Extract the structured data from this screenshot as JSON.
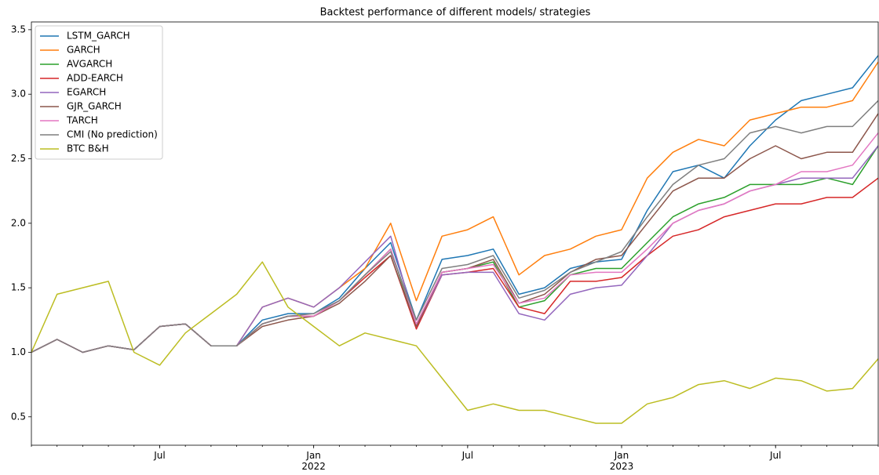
{
  "chart_data": {
    "type": "line",
    "title": "Backtest performance of different models/ strategies",
    "x": [
      "2021-02",
      "2021-03",
      "2021-04",
      "2021-05",
      "2021-06",
      "2021-07",
      "2021-08",
      "2021-09",
      "2021-10",
      "2021-11",
      "2021-12",
      "2022-01",
      "2022-02",
      "2022-03",
      "2022-04",
      "2022-05",
      "2022-06",
      "2022-07",
      "2022-08",
      "2022-09",
      "2022-10",
      "2022-11",
      "2022-12",
      "2023-01",
      "2023-02",
      "2023-03",
      "2023-04",
      "2023-05",
      "2023-06",
      "2023-07",
      "2023-08",
      "2023-09",
      "2023-10",
      "2023-11"
    ],
    "xlim": [
      "2021-02",
      "2023-11"
    ],
    "xticks": [
      {
        "value": "2021-07",
        "label": "Jul"
      },
      {
        "value": "2022-01",
        "label": "Jan\n2022"
      },
      {
        "value": "2022-07",
        "label": "Jul"
      },
      {
        "value": "2023-01",
        "label": "Jan\n2023"
      },
      {
        "value": "2023-07",
        "label": "Jul"
      }
    ],
    "ylim": [
      0.28,
      3.56
    ],
    "yticks": [
      0.5,
      {
        "value": 1.0,
        "label": "1.0"
      },
      1.5,
      {
        "value": 2.0,
        "label": "2.0"
      },
      2.5,
      {
        "value": 3.0,
        "label": "3.0"
      },
      3.5
    ],
    "legend": "upper left",
    "grid": false,
    "series": [
      {
        "name": "LSTM_GARCH",
        "color": "#1f77b4",
        "values": [
          1.0,
          1.1,
          1.0,
          1.05,
          1.02,
          1.2,
          1.22,
          1.05,
          1.05,
          1.25,
          1.3,
          1.3,
          1.42,
          1.65,
          1.85,
          1.25,
          1.72,
          1.75,
          1.8,
          1.45,
          1.5,
          1.65,
          1.7,
          1.72,
          2.1,
          2.4,
          2.45,
          2.35,
          2.6,
          2.8,
          2.95,
          3.0,
          3.05,
          3.3
        ]
      },
      {
        "name": "GARCH",
        "color": "#ff7f0e",
        "values": [
          1.0,
          1.1,
          1.0,
          1.05,
          1.02,
          1.2,
          1.22,
          1.05,
          1.05,
          1.35,
          1.42,
          1.35,
          1.5,
          1.65,
          2.0,
          1.4,
          1.9,
          1.95,
          2.05,
          1.6,
          1.75,
          1.8,
          1.9,
          1.95,
          2.35,
          2.55,
          2.65,
          2.6,
          2.8,
          2.85,
          2.9,
          2.9,
          2.95,
          3.25
        ]
      },
      {
        "name": "AVGARCH",
        "color": "#2ca02c",
        "values": [
          1.0,
          1.1,
          1.0,
          1.05,
          1.02,
          1.2,
          1.22,
          1.05,
          1.05,
          1.22,
          1.28,
          1.28,
          1.4,
          1.6,
          1.8,
          1.2,
          1.62,
          1.65,
          1.7,
          1.35,
          1.4,
          1.6,
          1.65,
          1.65,
          1.85,
          2.05,
          2.15,
          2.2,
          2.3,
          2.3,
          2.3,
          2.35,
          2.3,
          2.6
        ]
      },
      {
        "name": "ADD-EARCH",
        "color": "#d62728",
        "values": [
          1.0,
          1.1,
          1.0,
          1.05,
          1.02,
          1.2,
          1.22,
          1.05,
          1.05,
          1.22,
          1.28,
          1.28,
          1.4,
          1.58,
          1.75,
          1.18,
          1.6,
          1.62,
          1.65,
          1.35,
          1.3,
          1.55,
          1.55,
          1.58,
          1.75,
          1.9,
          1.95,
          2.05,
          2.1,
          2.15,
          2.15,
          2.2,
          2.2,
          2.35
        ]
      },
      {
        "name": "EGARCH",
        "color": "#9467bd",
        "values": [
          1.0,
          1.1,
          1.0,
          1.05,
          1.02,
          1.2,
          1.22,
          1.05,
          1.05,
          1.35,
          1.42,
          1.35,
          1.5,
          1.7,
          1.9,
          1.2,
          1.6,
          1.62,
          1.62,
          1.3,
          1.25,
          1.45,
          1.5,
          1.52,
          1.75,
          2.0,
          2.1,
          2.15,
          2.25,
          2.3,
          2.35,
          2.35,
          2.35,
          2.6
        ]
      },
      {
        "name": "GJR_GARCH",
        "color": "#8c564b",
        "values": [
          1.0,
          1.1,
          1.0,
          1.05,
          1.02,
          1.2,
          1.22,
          1.05,
          1.05,
          1.2,
          1.25,
          1.28,
          1.38,
          1.55,
          1.75,
          1.2,
          1.62,
          1.65,
          1.72,
          1.38,
          1.45,
          1.62,
          1.72,
          1.75,
          2.0,
          2.25,
          2.35,
          2.35,
          2.5,
          2.6,
          2.5,
          2.55,
          2.55,
          2.85
        ]
      },
      {
        "name": "TARCH",
        "color": "#e377c2",
        "values": [
          1.0,
          1.1,
          1.0,
          1.05,
          1.02,
          1.2,
          1.22,
          1.05,
          1.05,
          1.22,
          1.28,
          1.28,
          1.4,
          1.6,
          1.8,
          1.22,
          1.62,
          1.65,
          1.68,
          1.38,
          1.42,
          1.6,
          1.62,
          1.62,
          1.8,
          2.0,
          2.1,
          2.15,
          2.25,
          2.3,
          2.4,
          2.4,
          2.45,
          2.7
        ]
      },
      {
        "name": "CMI (No prediction)",
        "color": "#7f7f7f",
        "values": [
          1.0,
          1.1,
          1.0,
          1.05,
          1.02,
          1.2,
          1.22,
          1.05,
          1.05,
          1.22,
          1.28,
          1.3,
          1.4,
          1.6,
          1.78,
          1.25,
          1.65,
          1.68,
          1.75,
          1.42,
          1.48,
          1.62,
          1.7,
          1.78,
          2.05,
          2.3,
          2.45,
          2.5,
          2.7,
          2.75,
          2.7,
          2.75,
          2.75,
          2.95
        ]
      },
      {
        "name": "BTC B&H",
        "color": "#bcbd22",
        "values": [
          1.0,
          1.45,
          1.5,
          1.55,
          1.0,
          0.9,
          1.15,
          1.3,
          1.45,
          1.7,
          1.35,
          1.2,
          1.05,
          1.15,
          1.1,
          1.05,
          0.8,
          0.55,
          0.6,
          0.55,
          0.55,
          0.5,
          0.45,
          0.45,
          0.6,
          0.65,
          0.75,
          0.78,
          0.72,
          0.8,
          0.78,
          0.7,
          0.72,
          0.95
        ]
      }
    ]
  }
}
